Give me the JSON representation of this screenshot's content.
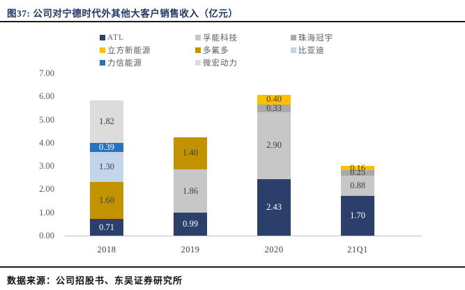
{
  "figure": {
    "title": "图37:  公司对宁德时代外其他大客户销售收入（亿元）",
    "source": "数据来源：公司招股书、东吴证券研究所"
  },
  "colors": {
    "title_text": "#1F3864",
    "rule": "#1A1A1A",
    "axis_line": "#BFBFBF",
    "tick_text": "#595959",
    "value_label_dark": "#3F3F3F",
    "value_label_light": "#FFFFFF"
  },
  "chart_data": {
    "type": "bar",
    "stacked": true,
    "title": "公司对宁德时代外其他大客户销售收入（亿元）",
    "unit": "亿元",
    "grid": false,
    "legend_position": "top",
    "ylim": [
      0,
      7
    ],
    "ytick_step": 1,
    "yticks": [
      "0.00",
      "1.00",
      "2.00",
      "3.00",
      "4.00",
      "5.00",
      "6.00",
      "7.00"
    ],
    "categories": [
      "2018",
      "2019",
      "2020",
      "21Q1"
    ],
    "series": [
      {
        "name": "ATL",
        "color": "#2A406B",
        "label_color": "#FFFFFF",
        "values": [
          0.71,
          0.99,
          2.43,
          1.7
        ]
      },
      {
        "name": "孚能科技",
        "color": "#C7C7C7",
        "label_color": "#3F3F3F",
        "values": [
          0,
          1.86,
          2.9,
          0.88
        ]
      },
      {
        "name": "珠海冠宇",
        "color": "#A9A9A9",
        "label_color": "#3F3F3F",
        "values": [
          0,
          0,
          0.33,
          0.25
        ]
      },
      {
        "name": "立方新能源",
        "color": "#FFC000",
        "label_color": "#3F3F3F",
        "values": [
          0,
          0,
          0.4,
          0.16
        ]
      },
      {
        "name": "多氟多",
        "color": "#C39200",
        "label_color": "#3F3F3F",
        "values": [
          1.6,
          1.4,
          0,
          0
        ]
      },
      {
        "name": "比亚迪",
        "color": "#C3D4EC",
        "label_color": "#3F3F3F",
        "values": [
          1.3,
          0,
          0,
          0
        ]
      },
      {
        "name": "力信能源",
        "color": "#2573BE",
        "label_color": "#FFFFFF",
        "values": [
          0.39,
          0,
          0,
          0
        ]
      },
      {
        "name": "微宏动力",
        "color": "#DCDCDC",
        "label_color": "#3F3F3F",
        "values": [
          1.82,
          0,
          0,
          0
        ]
      }
    ]
  }
}
